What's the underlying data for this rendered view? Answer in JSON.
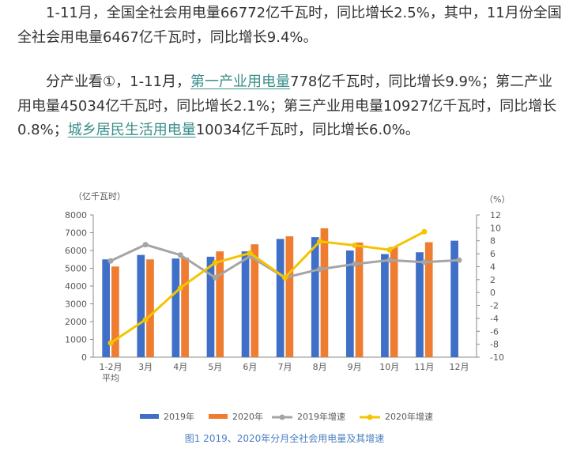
{
  "article": {
    "p1": "1-11月，全国全社会用电量66772亿千瓦时，同比增长2.5%，其中，11月份全国全社会用电量6467亿千瓦时，同比增长9.4%。",
    "p2_a": "分产业看①，1-11月，",
    "p2_link1": "第一产业用电量",
    "p2_b": "778亿千瓦时，同比增长9.9%；第二产业用电量45034亿千瓦时，同比增长2.1%；第三产业用电量10927亿千瓦时，同比增长0.8%；",
    "p2_link2": "城乡居民生活用电量",
    "p2_c": "10034亿千瓦时，同比增长6.0%。"
  },
  "chart_data": {
    "type": "bar",
    "title": "",
    "caption": "图1  2019、2020年分月全社会用电量及其增速",
    "ylabel_left": "（亿千瓦时）",
    "ylabel_right": "（%）",
    "y_left_ticks": [
      "0",
      "1000",
      "2000",
      "3000",
      "4000",
      "5000",
      "6000",
      "7000",
      "8000"
    ],
    "y_right_ticks": [
      "-10",
      "-8",
      "-6",
      "-4",
      "-2",
      "0",
      "2",
      "4",
      "6",
      "8",
      "10",
      "12"
    ],
    "ylim_left": [
      0,
      8000
    ],
    "ylim_right": [
      -10,
      12
    ],
    "categories": [
      "1-2月\n平均",
      "3月",
      "4月",
      "5月",
      "6月",
      "7月",
      "8月",
      "9月",
      "10月",
      "11月",
      "12月"
    ],
    "bar_series": [
      {
        "name": "2019年",
        "color": "#3f6fc7",
        "values": [
          5500,
          5750,
          5550,
          5650,
          5950,
          6650,
          6750,
          6000,
          5800,
          5900,
          6550
        ]
      },
      {
        "name": "2020年",
        "color": "#ef7d31",
        "values": [
          5100,
          5500,
          5600,
          5950,
          6350,
          6800,
          7250,
          6450,
          6200,
          6467,
          null
        ]
      }
    ],
    "line_series": [
      {
        "name": "2019年增速",
        "color": "#a5a5a5",
        "values": [
          4.9,
          7.4,
          5.8,
          2.3,
          5.6,
          2.3,
          3.6,
          4.4,
          5.0,
          4.7,
          5.0
        ]
      },
      {
        "name": "2020年增速",
        "color": "#f5c400",
        "values": [
          -7.8,
          -4.2,
          0.7,
          4.6,
          6.1,
          2.3,
          7.9,
          7.3,
          6.6,
          9.4,
          null
        ]
      }
    ],
    "legend_position": "bottom",
    "grid": false
  }
}
